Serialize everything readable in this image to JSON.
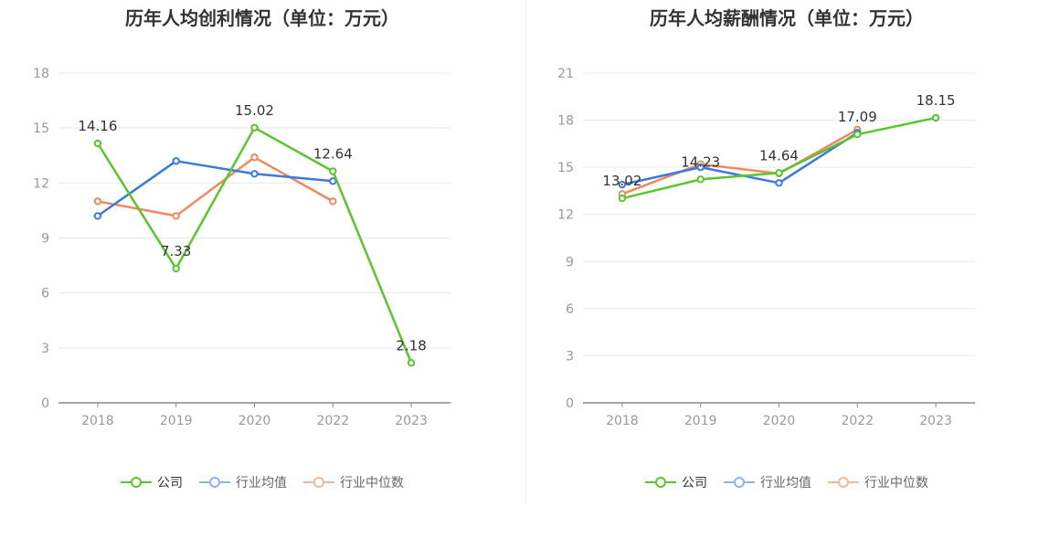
{
  "colors": {
    "company": "#59c62a",
    "average": "#3c78e0",
    "median": "#f08a5d",
    "average_legend": "#8fb3ec",
    "median_legend": "#f5b79a",
    "grid": "#e6e9f2",
    "axis": "#888888",
    "tick_text": "#999999",
    "label_text": "#333333"
  },
  "legend": {
    "company": "公司",
    "average": "行业均值",
    "median": "行业中位数"
  },
  "chart_data": [
    {
      "type": "line",
      "title": "历年人均创利情况（单位：万元）",
      "categories": [
        "2018",
        "2019",
        "2020",
        "2022",
        "2023"
      ],
      "ylim": [
        0,
        18
      ],
      "yticks": [
        "0",
        "3",
        "6",
        "9",
        "12",
        "15",
        "18"
      ],
      "series": [
        {
          "name": "公司",
          "key": "company",
          "values": [
            14.16,
            7.33,
            15.02,
            12.64,
            2.18
          ],
          "labels": [
            "14.16",
            "7.33",
            "15.02",
            "12.64",
            "2.18"
          ]
        },
        {
          "name": "行业均值",
          "key": "average",
          "values": [
            10.2,
            13.2,
            12.5,
            12.1,
            null
          ]
        },
        {
          "name": "行业中位数",
          "key": "median",
          "values": [
            11.0,
            10.2,
            13.4,
            11.0,
            null
          ]
        }
      ]
    },
    {
      "type": "line",
      "title": "历年人均薪酬情况（单位：万元）",
      "categories": [
        "2018",
        "2019",
        "2020",
        "2022",
        "2023"
      ],
      "ylim": [
        0,
        21
      ],
      "yticks": [
        "0",
        "3",
        "6",
        "9",
        "12",
        "15",
        "18",
        "21"
      ],
      "series": [
        {
          "name": "公司",
          "key": "company",
          "values": [
            13.02,
            14.23,
            14.64,
            17.09,
            18.15
          ],
          "labels": [
            "13.02",
            "14.23",
            "14.64",
            "17.09",
            "18.15"
          ]
        },
        {
          "name": "行业均值",
          "key": "average",
          "values": [
            13.9,
            15.0,
            14.0,
            17.2,
            null
          ]
        },
        {
          "name": "行业中位数",
          "key": "median",
          "values": [
            13.3,
            15.2,
            14.6,
            17.4,
            null
          ]
        }
      ]
    }
  ]
}
